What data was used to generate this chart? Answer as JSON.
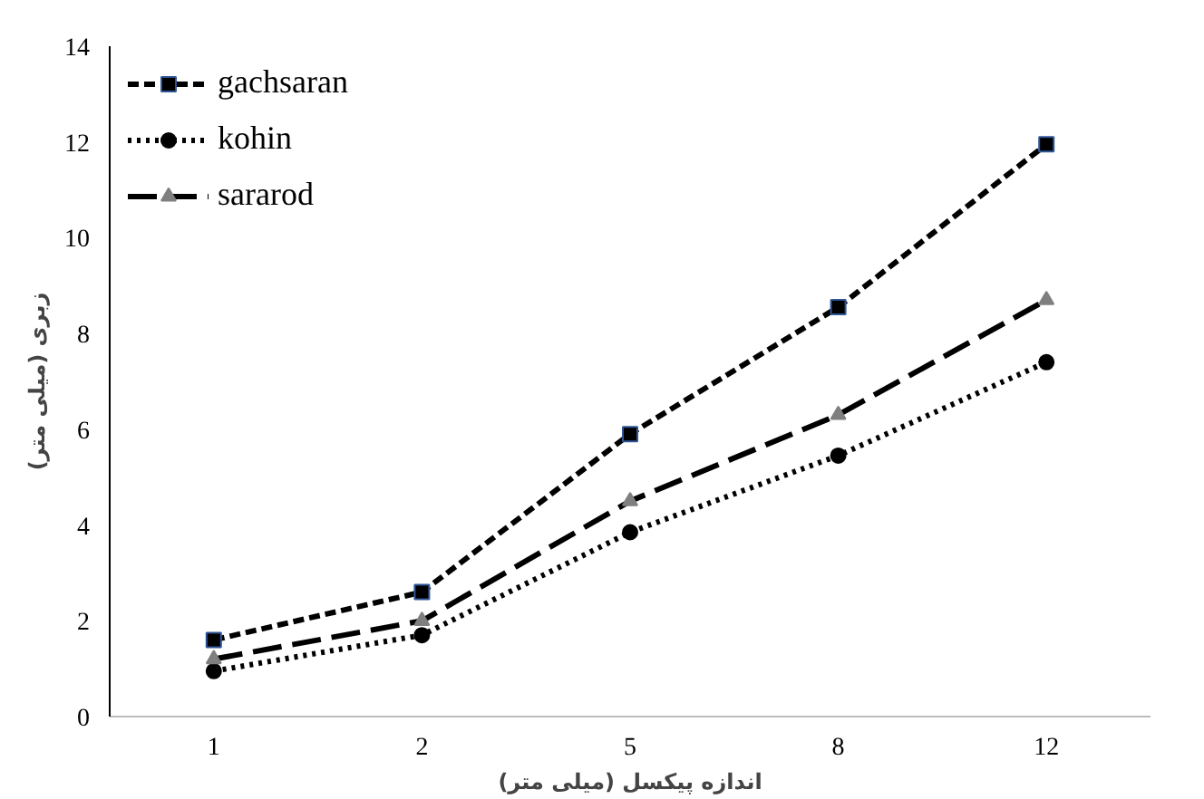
{
  "chart_data": {
    "type": "line",
    "xlabel": "اندازه پیکسل (میلی متر)",
    "ylabel": "زبری (میلی متر)",
    "categories": [
      "1",
      "2",
      "5",
      "8",
      "12"
    ],
    "ylim": [
      0,
      14
    ],
    "yticks": [
      0,
      2,
      4,
      6,
      8,
      10,
      12,
      14
    ],
    "grid": false,
    "legend": "top left",
    "series": [
      {
        "name": "gachsaran",
        "color": "#000000",
        "marker": "square",
        "line_style": "dashed",
        "values": [
          1.6,
          2.6,
          5.9,
          8.55,
          11.95
        ]
      },
      {
        "name": "kohin",
        "color": "#000000",
        "marker": "circle",
        "line_style": "dotted",
        "values": [
          0.95,
          1.7,
          3.85,
          5.45,
          7.4
        ]
      },
      {
        "name": "sararod",
        "color": "#000000",
        "marker": "triangle",
        "line_style": "longdash",
        "values": [
          1.2,
          2.0,
          4.5,
          6.3,
          8.7
        ]
      }
    ]
  }
}
